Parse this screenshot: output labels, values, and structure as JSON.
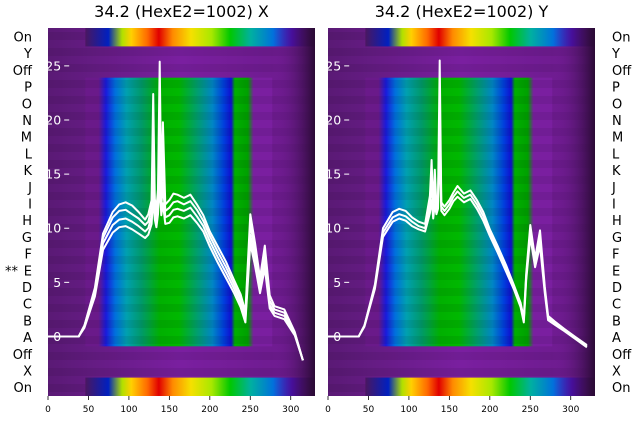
{
  "chart_data": [
    {
      "type": "heatmap",
      "title": "34.2 (HexE2=1002) X",
      "xlim": [
        0,
        330
      ],
      "xticks": [
        0,
        50,
        100,
        150,
        200,
        250,
        300
      ],
      "ylim": [
        -5.5,
        28.5
      ],
      "yticks": [
        0,
        5,
        10,
        15,
        20,
        25
      ],
      "row_labels": [
        "On",
        "Y",
        "Off",
        "P",
        "O",
        "N",
        "M",
        "L",
        "K",
        "J",
        "I",
        "H",
        "G",
        "F",
        "E",
        "D",
        "C",
        "B",
        "A",
        "Off",
        "X",
        "On"
      ],
      "marked_row": {
        "label": "E",
        "marker": "**"
      },
      "colormap": "nipy_spectral",
      "series": [
        {
          "x": [
            0,
            38,
            45,
            58,
            68,
            80,
            88,
            96,
            104,
            112,
            120,
            124,
            128,
            130,
            132,
            134,
            136,
            138,
            140,
            142,
            145,
            150,
            155,
            160,
            168,
            176,
            184,
            192,
            200,
            210,
            220,
            230,
            238,
            244,
            250,
            256,
            262,
            268,
            274,
            280,
            292,
            305,
            315
          ],
          "y": [
            0,
            0,
            1,
            4.5,
            9.5,
            11.5,
            12.2,
            12.4,
            12.1,
            11.5,
            10.8,
            11.3,
            12.6,
            22.4,
            12.7,
            11.8,
            13.6,
            25.4,
            13.2,
            19.8,
            12.2,
            12.6,
            13.2,
            13.1,
            12.8,
            13.1,
            12.2,
            11.2,
            9.7,
            8.3,
            6.9,
            5.2,
            3.9,
            2.3,
            11.3,
            8.6,
            5.4,
            8.4,
            3.8,
            2.8,
            2.5,
            0.4,
            -2.2
          ]
        },
        {
          "x": [
            0,
            38,
            45,
            58,
            68,
            80,
            88,
            96,
            104,
            112,
            120,
            124,
            128,
            130,
            132,
            134,
            136,
            138,
            140,
            142,
            145,
            150,
            155,
            160,
            168,
            176,
            184,
            192,
            200,
            210,
            220,
            230,
            238,
            244,
            250,
            256,
            262,
            268,
            274,
            280,
            292,
            305,
            315
          ],
          "y": [
            0,
            0,
            1,
            4.3,
            9.1,
            11.0,
            11.6,
            11.7,
            11.3,
            10.9,
            10.3,
            10.6,
            11.9,
            18.6,
            12.2,
            11.3,
            12.9,
            20.5,
            12.6,
            16.7,
            11.6,
            11.9,
            12.4,
            12.5,
            12.2,
            12.5,
            11.7,
            10.7,
            9.3,
            7.8,
            6.4,
            4.8,
            3.5,
            1.9,
            10.4,
            7.9,
            4.9,
            7.7,
            3.3,
            2.5,
            2.2,
            0.3,
            -2.2
          ]
        },
        {
          "x": [
            0,
            38,
            45,
            58,
            68,
            80,
            88,
            96,
            104,
            112,
            120,
            124,
            128,
            130,
            132,
            134,
            136,
            138,
            140,
            142,
            145,
            150,
            155,
            160,
            168,
            176,
            184,
            192,
            200,
            210,
            220,
            230,
            238,
            244,
            250,
            256,
            262,
            268,
            274,
            280,
            292,
            305,
            315
          ],
          "y": [
            0,
            0,
            0.9,
            4.0,
            8.6,
            10.3,
            10.8,
            10.9,
            10.6,
            10.2,
            9.7,
            10.0,
            11.1,
            15.4,
            11.5,
            10.7,
            12.1,
            16.8,
            11.9,
            14.2,
            11.0,
            11.2,
            11.7,
            11.8,
            11.6,
            11.9,
            11.1,
            10.2,
            8.8,
            7.3,
            5.9,
            4.4,
            3.1,
            1.6,
            9.4,
            7.2,
            4.4,
            7.0,
            2.9,
            2.2,
            1.9,
            0.2,
            -2.2
          ]
        },
        {
          "x": [
            0,
            38,
            45,
            58,
            68,
            80,
            88,
            96,
            104,
            112,
            120,
            124,
            128,
            130,
            132,
            134,
            136,
            138,
            140,
            142,
            145,
            150,
            155,
            160,
            168,
            176,
            184,
            192,
            200,
            210,
            220,
            230,
            238,
            244,
            250,
            256,
            262,
            268,
            274,
            280,
            292,
            305,
            315
          ],
          "y": [
            0,
            0,
            0.8,
            3.7,
            8.0,
            9.6,
            10.1,
            10.2,
            9.9,
            9.5,
            9.1,
            9.4,
            10.4,
            12.8,
            10.8,
            10.1,
            11.3,
            14.2,
            11.2,
            12.3,
            10.4,
            10.5,
            11.0,
            11.1,
            10.9,
            11.2,
            10.5,
            9.7,
            8.3,
            6.8,
            5.4,
            4.0,
            2.7,
            1.3,
            8.6,
            6.5,
            4.0,
            6.3,
            2.6,
            1.9,
            1.6,
            0.1,
            -2.2
          ]
        }
      ]
    },
    {
      "type": "heatmap",
      "title": "34.2 (HexE2=1002) Y",
      "xlim": [
        0,
        330
      ],
      "xticks": [
        0,
        50,
        100,
        150,
        200,
        250,
        300
      ],
      "ylim": [
        -5.5,
        28.5
      ],
      "yticks": [
        0,
        5,
        10,
        15,
        20,
        25
      ],
      "row_labels": [
        "On",
        "Y",
        "Off",
        "P",
        "O",
        "N",
        "M",
        "L",
        "K",
        "J",
        "I",
        "H",
        "G",
        "F",
        "E",
        "D",
        "C",
        "B",
        "A",
        "Off",
        "X",
        "On"
      ],
      "colormap": "nipy_spectral",
      "series": [
        {
          "x": [
            0,
            38,
            45,
            58,
            68,
            80,
            88,
            96,
            104,
            112,
            120,
            126,
            128,
            130,
            132,
            134,
            136,
            138,
            140,
            144,
            150,
            155,
            160,
            168,
            176,
            184,
            192,
            200,
            210,
            220,
            230,
            238,
            242,
            245,
            250,
            256,
            262,
            268,
            272,
            280,
            292,
            305,
            320
          ],
          "y": [
            0,
            0,
            1,
            4.8,
            10.0,
            11.5,
            11.8,
            11.6,
            11.0,
            10.6,
            10.4,
            13.0,
            16.3,
            11.7,
            15.4,
            12.2,
            12.6,
            25.5,
            12.4,
            12.0,
            12.6,
            13.3,
            13.9,
            13.2,
            13.5,
            12.6,
            11.5,
            9.9,
            8.3,
            6.6,
            4.7,
            3.1,
            1.7,
            5.8,
            10.3,
            7.2,
            9.8,
            4.6,
            1.9,
            1.4,
            0.7,
            0,
            -0.8
          ]
        },
        {
          "x": [
            0,
            38,
            45,
            58,
            68,
            80,
            88,
            96,
            104,
            112,
            120,
            126,
            128,
            130,
            132,
            134,
            136,
            138,
            140,
            144,
            150,
            155,
            160,
            168,
            176,
            184,
            192,
            200,
            210,
            220,
            230,
            238,
            242,
            245,
            250,
            256,
            262,
            268,
            272,
            280,
            292,
            305,
            320
          ],
          "y": [
            0,
            0,
            1,
            4.6,
            9.6,
            11.0,
            11.3,
            11.1,
            10.6,
            10.2,
            10.0,
            12.2,
            14.4,
            11.3,
            13.6,
            11.8,
            12.2,
            21.5,
            12.0,
            11.6,
            12.2,
            12.9,
            13.4,
            12.8,
            13.1,
            12.2,
            11.1,
            9.6,
            8.0,
            6.3,
            4.5,
            2.9,
            1.5,
            5.5,
            9.8,
            6.8,
            9.1,
            4.3,
            1.7,
            1.3,
            0.6,
            -0.1,
            -0.9
          ]
        },
        {
          "x": [
            0,
            38,
            45,
            58,
            68,
            80,
            88,
            96,
            104,
            112,
            120,
            126,
            128,
            130,
            132,
            134,
            136,
            138,
            140,
            144,
            150,
            155,
            160,
            168,
            176,
            184,
            192,
            200,
            210,
            220,
            230,
            238,
            242,
            245,
            250,
            256,
            262,
            268,
            272,
            280,
            292,
            305,
            320
          ],
          "y": [
            0,
            0,
            0.9,
            4.4,
            9.2,
            10.6,
            10.9,
            10.7,
            10.2,
            9.9,
            9.7,
            11.4,
            12.6,
            10.9,
            12.2,
            11.3,
            11.8,
            17.8,
            11.6,
            11.2,
            11.8,
            12.5,
            12.9,
            12.4,
            12.7,
            11.8,
            10.7,
            9.3,
            7.7,
            6.0,
            4.3,
            2.7,
            1.3,
            5.2,
            9.2,
            6.4,
            8.4,
            4.0,
            1.5,
            1.1,
            0.5,
            -0.2,
            -1.0
          ]
        }
      ]
    }
  ]
}
